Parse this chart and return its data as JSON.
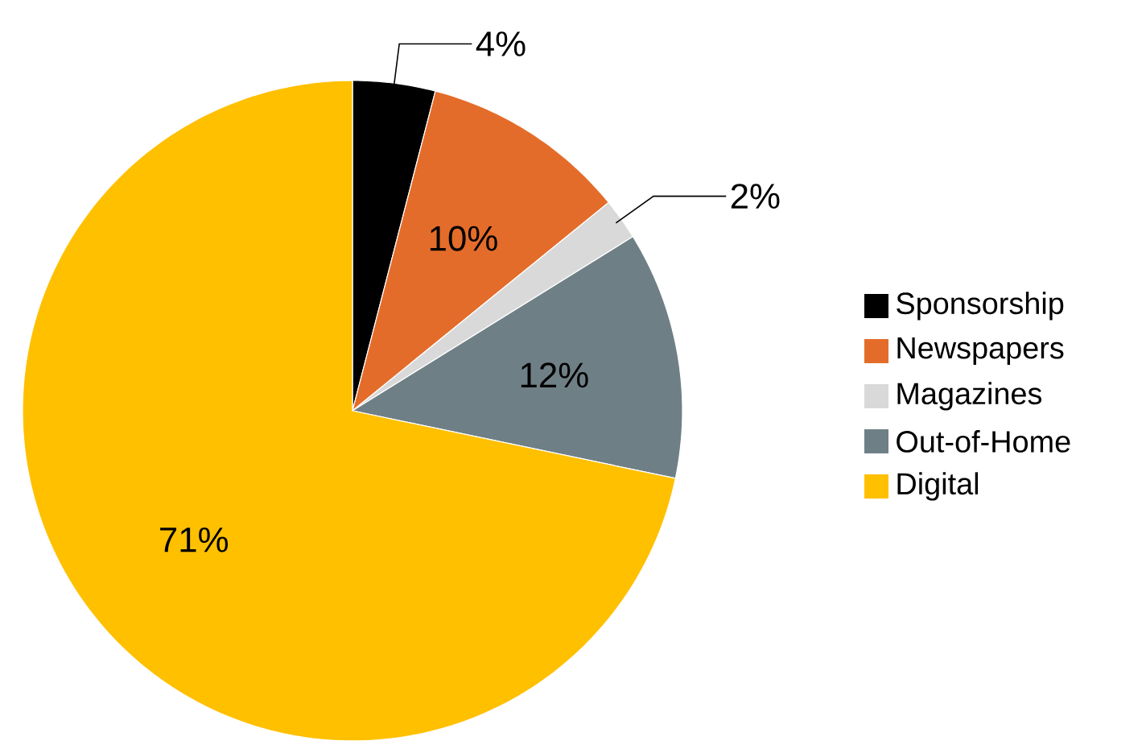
{
  "chart_data": {
    "type": "pie",
    "categories": [
      "Sponsorship",
      "Newspapers",
      "Magazines",
      "Out-of-Home",
      "Digital"
    ],
    "values": [
      4,
      10,
      2,
      12,
      71
    ],
    "colors": [
      "#000000",
      "#e46c2a",
      "#d9d9d9",
      "#6f7f86",
      "#ffc000"
    ],
    "value_labels": [
      "4%",
      "10%",
      "2%",
      "12%",
      "71%"
    ],
    "legend": "right"
  }
}
